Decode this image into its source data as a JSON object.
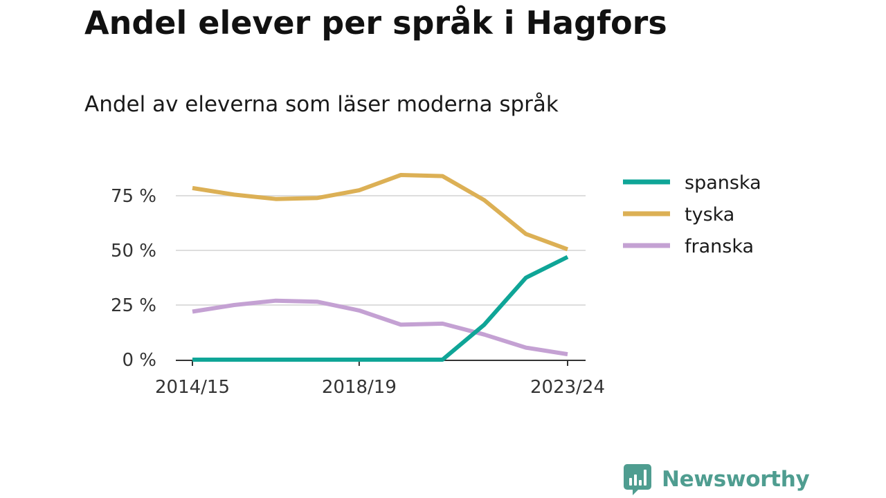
{
  "header": {
    "title": "Andel elever per språk i Hagfors",
    "subtitle": "Andel av eleverna som läser moderna språk"
  },
  "brand": {
    "name": "Newsworthy",
    "color": "#4f9d90"
  },
  "chart_data": {
    "type": "line",
    "x": [
      "2014/15",
      "2015/16",
      "2016/17",
      "2017/18",
      "2018/19",
      "2019/20",
      "2020/21",
      "2021/22",
      "2022/23",
      "2023/24"
    ],
    "xtick_labels": [
      "2014/15",
      "2018/19",
      "2023/24"
    ],
    "ylim": [
      0,
      85
    ],
    "yticks": [
      0,
      25,
      50,
      75
    ],
    "ytick_labels": [
      "0 %",
      "25 %",
      "50 %",
      "75 %"
    ],
    "grid": true,
    "legend": "right",
    "series": [
      {
        "name": "spanska",
        "color": "#0fa597",
        "values": [
          0,
          0,
          0,
          0,
          0,
          0,
          0,
          16,
          37.5,
          47
        ]
      },
      {
        "name": "tyska",
        "color": "#dcb055",
        "values": [
          78.5,
          75.5,
          73.5,
          74,
          77.5,
          84.5,
          84,
          73,
          57.5,
          50.5
        ]
      },
      {
        "name": "franska",
        "color": "#c4a1d3",
        "values": [
          22,
          25,
          27,
          26.5,
          22.5,
          16,
          16.5,
          11.5,
          5.5,
          2.5
        ]
      }
    ]
  }
}
